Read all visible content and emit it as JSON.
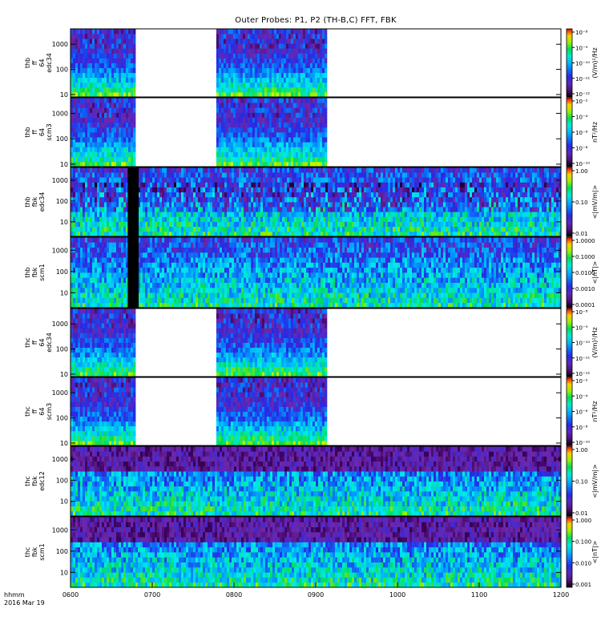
{
  "chart_data": {
    "type": "heatmap",
    "title": "Outer Probes: P1, P2 (TH-B,C) FFT, FBK",
    "x_ticks": [
      "0600",
      "0700",
      "0800",
      "0900",
      "1000",
      "1100",
      "1200"
    ],
    "x_range": [
      "0600",
      "1200"
    ],
    "x_footer": [
      "hhmm",
      "2016 Mar 19"
    ],
    "panels": [
      {
        "ylabel": [
          "thb",
          "ff",
          "64",
          "edc34"
        ],
        "y_ticks": [
          "10",
          "100",
          "1000"
        ],
        "y_scale": "log",
        "y_range": [
          8,
          4096
        ],
        "colorbar": {
          "label": "(V/m)²/Hz",
          "ticks": [
            "10⁻¹²",
            "10⁻¹¹",
            "10⁻¹⁰",
            "10⁻⁹",
            "10⁻⁸"
          ]
        },
        "data_intervals": [
          [
            "0600",
            "0647"
          ],
          [
            "0747",
            "0908"
          ]
        ]
      },
      {
        "ylabel": [
          "thb",
          "ff",
          "64",
          "scm3"
        ],
        "y_ticks": [
          "10",
          "100",
          "1000"
        ],
        "y_scale": "log",
        "y_range": [
          8,
          4096
        ],
        "colorbar": {
          "label": "nT²/Hz",
          "ticks": [
            "10⁻¹⁰",
            "10⁻⁸",
            "10⁻⁶",
            "10⁻⁴",
            "10⁻²"
          ]
        },
        "data_intervals": [
          [
            "0600",
            "0647"
          ],
          [
            "0747",
            "0908"
          ]
        ]
      },
      {
        "ylabel": [
          "thb",
          "fbk",
          "edc34"
        ],
        "y_ticks": [
          "10",
          "100",
          "1000"
        ],
        "y_scale": "log",
        "y_range": [
          2,
          4096
        ],
        "colorbar": {
          "label": "<|mV/m|>",
          "ticks": [
            "0.01",
            "0.10",
            "1.00"
          ]
        },
        "data_intervals": [
          [
            "0600",
            "1200"
          ]
        ],
        "gaps": [
          [
            "0642",
            "0650"
          ]
        ]
      },
      {
        "ylabel": [
          "thb",
          "fbk",
          "scm1"
        ],
        "y_ticks": [
          "10",
          "100",
          "1000"
        ],
        "y_scale": "log",
        "y_range": [
          2,
          4096
        ],
        "colorbar": {
          "label": "<|nT|>",
          "ticks": [
            "0.0001",
            "0.0010",
            "0.0100",
            "0.1000",
            "1.0000"
          ]
        },
        "data_intervals": [
          [
            "0600",
            "1200"
          ]
        ],
        "gaps": [
          [
            "0642",
            "0650"
          ]
        ]
      },
      {
        "ylabel": [
          "thc",
          "ff",
          "64",
          "edc34"
        ],
        "y_ticks": [
          "10",
          "100",
          "1000"
        ],
        "y_scale": "log",
        "y_range": [
          8,
          4096
        ],
        "colorbar": {
          "label": "(V/m)²/Hz",
          "ticks": [
            "10⁻¹²",
            "10⁻¹¹",
            "10⁻¹⁰",
            "10⁻⁹",
            "10⁻⁸"
          ]
        },
        "data_intervals": [
          [
            "0600",
            "0647"
          ],
          [
            "0747",
            "0908"
          ]
        ]
      },
      {
        "ylabel": [
          "thc",
          "ff",
          "64",
          "scm3"
        ],
        "y_ticks": [
          "10",
          "100",
          "1000"
        ],
        "y_scale": "log",
        "y_range": [
          8,
          4096
        ],
        "colorbar": {
          "label": "nT²/Hz",
          "ticks": [
            "10⁻¹⁰",
            "10⁻⁸",
            "10⁻⁶",
            "10⁻⁴",
            "10⁻²"
          ]
        },
        "data_intervals": [
          [
            "0600",
            "0647"
          ],
          [
            "0747",
            "0908"
          ]
        ]
      },
      {
        "ylabel": [
          "thc",
          "fbk",
          "edc12"
        ],
        "y_ticks": [
          "10",
          "100",
          "1000"
        ],
        "y_scale": "log",
        "y_range": [
          2,
          4096
        ],
        "colorbar": {
          "label": "<|mV/m|>",
          "ticks": [
            "0.01",
            "0.10",
            "1.00"
          ]
        },
        "data_intervals": [
          [
            "0600",
            "1200"
          ]
        ]
      },
      {
        "ylabel": [
          "thc",
          "fbk",
          "scm1"
        ],
        "y_ticks": [
          "10",
          "100",
          "1000"
        ],
        "y_scale": "log",
        "y_range": [
          2,
          4096
        ],
        "colorbar": {
          "label": "<|nT|>",
          "ticks": [
            "0.001",
            "0.010",
            "0.100",
            "1.000"
          ]
        },
        "data_intervals": [
          [
            "0600",
            "1200"
          ]
        ]
      }
    ]
  }
}
